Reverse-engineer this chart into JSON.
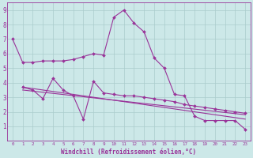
{
  "xlabel": "Windchill (Refroidissement éolien,°C)",
  "bg_color": "#cce8e8",
  "line_color": "#993399",
  "grid_color": "#aacccc",
  "xlim": [
    -0.5,
    23.5
  ],
  "ylim": [
    0,
    9.5
  ],
  "xticks": [
    0,
    1,
    2,
    3,
    4,
    5,
    6,
    7,
    8,
    9,
    10,
    11,
    12,
    13,
    14,
    15,
    16,
    17,
    18,
    19,
    20,
    21,
    22,
    23
  ],
  "yticks": [
    1,
    2,
    3,
    4,
    5,
    6,
    7,
    8,
    9
  ],
  "series": [
    {
      "x": [
        0,
        1,
        2,
        3,
        4,
        5,
        6,
        7,
        8,
        9,
        10,
        11,
        12,
        13,
        14,
        15,
        16,
        17,
        18,
        19,
        20,
        21,
        22,
        23
      ],
      "y": [
        7.0,
        5.4,
        5.4,
        5.5,
        5.5,
        5.5,
        5.6,
        5.8,
        6.0,
        5.9,
        8.5,
        9.0,
        8.1,
        7.5,
        5.7,
        5.0,
        3.2,
        3.1,
        1.7,
        1.4,
        1.4,
        1.4,
        1.4,
        0.8
      ],
      "marker": true
    },
    {
      "x": [
        1,
        2,
        3,
        4,
        5,
        6,
        7,
        8,
        9,
        10,
        11,
        12,
        13,
        14,
        15,
        16,
        17,
        18,
        19,
        20,
        21,
        22,
        23
      ],
      "y": [
        3.7,
        3.5,
        2.9,
        4.3,
        3.5,
        3.1,
        1.5,
        4.1,
        3.3,
        3.2,
        3.1,
        3.1,
        3.0,
        2.9,
        2.8,
        2.7,
        2.5,
        2.4,
        2.3,
        2.2,
        2.1,
        2.0,
        1.9
      ],
      "marker": true
    },
    {
      "x": [
        1,
        23
      ],
      "y": [
        3.7,
        1.5
      ],
      "marker": false
    },
    {
      "x": [
        1,
        23
      ],
      "y": [
        3.5,
        1.8
      ],
      "marker": false
    }
  ]
}
